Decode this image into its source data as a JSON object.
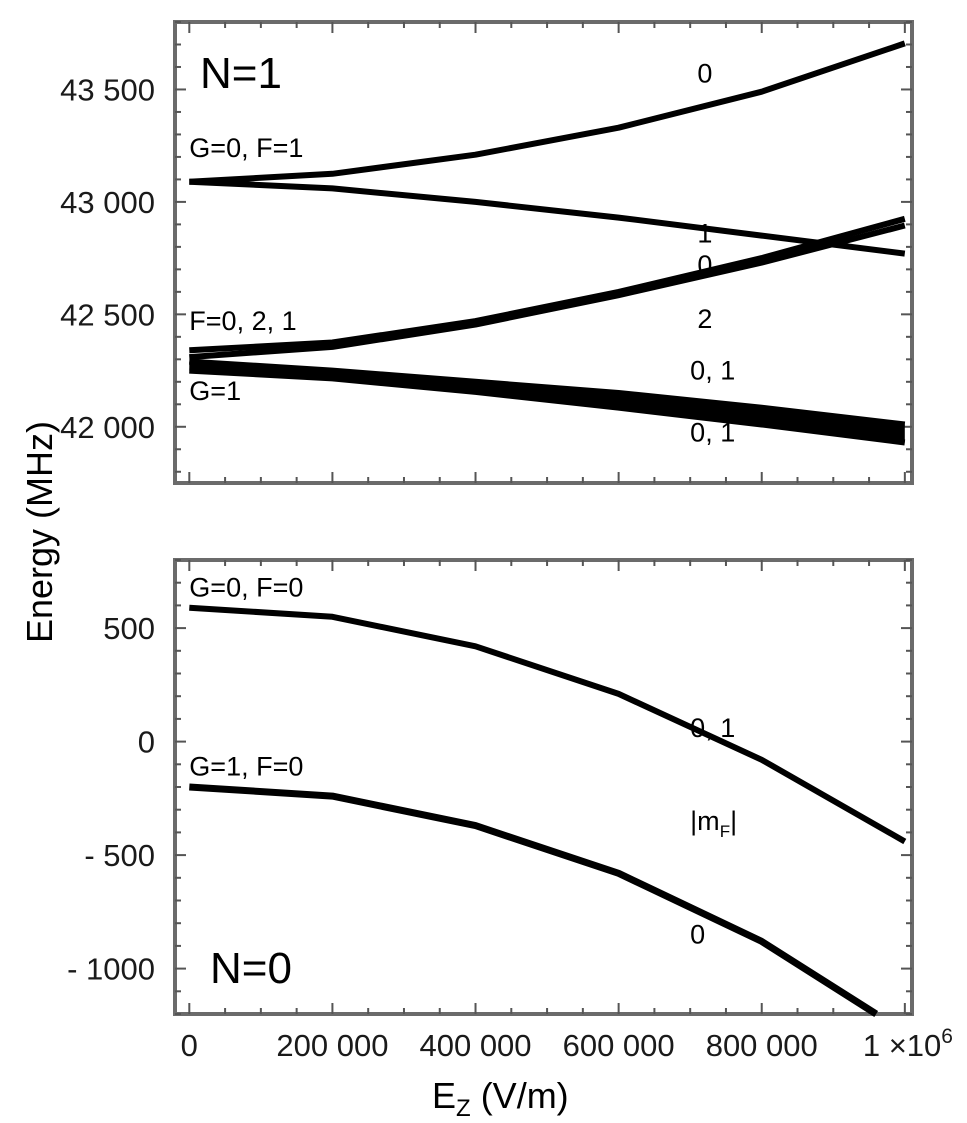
{
  "ylabel": "Energy (MHz)",
  "xlabel_main": "E",
  "xlabel_sub": "Z",
  "xlabel_unit": " (V/m)",
  "xticks": [
    {
      "value": 0,
      "label": "0"
    },
    {
      "value": 200000,
      "label": "200 000"
    },
    {
      "value": 400000,
      "label": "400 000"
    },
    {
      "value": 600000,
      "label": "600 000"
    },
    {
      "value": 800000,
      "label": "800 000"
    },
    {
      "value": 1000000,
      "label": "1 ×10",
      "sup": "6"
    }
  ],
  "chart_data": [
    {
      "type": "line",
      "title": "N=1",
      "xlabel": "E_Z (V/m)",
      "ylabel": "Energy (MHz)",
      "xlim": [
        -20000,
        1010000
      ],
      "ylim": [
        41750,
        43800
      ],
      "yticks": [
        {
          "value": 42000,
          "label": "42 000"
        },
        {
          "value": 42500,
          "label": "42 500"
        },
        {
          "value": 43000,
          "label": "43 000"
        },
        {
          "value": 43500,
          "label": "43 500"
        }
      ],
      "series": [
        {
          "name": "G=0, F=1, |mF|=0",
          "width": 6,
          "x": [
            0,
            200000,
            400000,
            600000,
            800000,
            1000000
          ],
          "values": [
            43090,
            43125,
            43210,
            43330,
            43490,
            43705
          ]
        },
        {
          "name": "G=0, F=1, |mF|=1",
          "width": 6,
          "x": [
            0,
            200000,
            400000,
            600000,
            800000,
            1000000
          ],
          "values": [
            43090,
            43060,
            43000,
            42930,
            42850,
            42770
          ]
        },
        {
          "name": "G=1, F=0,2,1, |mF|=0",
          "width": 6,
          "x": [
            0,
            200000,
            400000,
            600000,
            800000,
            1000000
          ],
          "values": [
            42340,
            42375,
            42470,
            42600,
            42750,
            42925
          ]
        },
        {
          "name": "G=1, F=0,2,1, |mF|=2",
          "width": 6,
          "x": [
            0,
            200000,
            400000,
            600000,
            800000,
            1000000
          ],
          "values": [
            42310,
            42355,
            42455,
            42585,
            42730,
            42895
          ]
        },
        {
          "name": "G=1, |mF|=0,1 (upper)",
          "width": 6,
          "x": [
            0,
            200000,
            400000,
            600000,
            800000,
            1000000
          ],
          "values": [
            42290,
            42250,
            42200,
            42150,
            42085,
            42010
          ]
        },
        {
          "name": "G=1, |mF|=0,1 (lower)",
          "width": 6,
          "x": [
            0,
            200000,
            400000,
            600000,
            800000,
            1000000
          ],
          "values": [
            42250,
            42215,
            42155,
            42085,
            42010,
            41930
          ]
        }
      ],
      "fill_between": [
        "G=1, |mF|=0,1 (upper)",
        "G=1, |mF|=0,1 (lower)"
      ],
      "annotations": [
        {
          "text": "0",
          "x": 710000,
          "y": 43530
        },
        {
          "text": "G=0, F=1",
          "x": 0,
          "y": 43200
        },
        {
          "text": "1",
          "x": 710000,
          "y": 42820
        },
        {
          "text": "0",
          "x": 710000,
          "y": 42680
        },
        {
          "text": "F=0, 2, 1",
          "x": 0,
          "y": 42430
        },
        {
          "text": "2",
          "x": 710000,
          "y": 42440
        },
        {
          "text": "0, 1",
          "x": 700000,
          "y": 42210
        },
        {
          "text": "G=1",
          "x": 0,
          "y": 42120
        },
        {
          "text": "0, 1",
          "x": 700000,
          "y": 41935
        }
      ]
    },
    {
      "type": "line",
      "title": "N=0",
      "xlabel": "E_Z (V/m)",
      "ylabel": "Energy (MHz)",
      "xlim": [
        -20000,
        1010000
      ],
      "ylim": [
        -1200,
        800
      ],
      "yticks": [
        {
          "value": 500,
          "label": "500"
        },
        {
          "value": 0,
          "label": "0"
        },
        {
          "value": -500,
          "label": "- 500"
        },
        {
          "value": -1000,
          "label": "- 1000"
        }
      ],
      "series": [
        {
          "name": "G=0, F=0, |mF|=0,1",
          "width": 6,
          "x": [
            0,
            200000,
            400000,
            600000,
            800000,
            1000000
          ],
          "values": [
            590,
            550,
            420,
            210,
            -80,
            -440
          ]
        },
        {
          "name": "G=1, F=0, |mF|=0",
          "width": 7,
          "x": [
            0,
            200000,
            400000,
            600000,
            800000,
            960000
          ],
          "values": [
            -200,
            -240,
            -370,
            -580,
            -880,
            -1200
          ]
        }
      ],
      "annotations": [
        {
          "text": "G=0, F=0",
          "x": 0,
          "y": 640
        },
        {
          "text": "0, 1",
          "x": 700000,
          "y": 20
        },
        {
          "text": "G=1, F=0",
          "x": 0,
          "y": -150
        },
        {
          "text": "0",
          "x": 700000,
          "y": -890
        }
      ],
      "label_mF": {
        "main": "|m",
        "sub": "F",
        "end": "|",
        "x": 700000,
        "y": -390
      }
    }
  ]
}
